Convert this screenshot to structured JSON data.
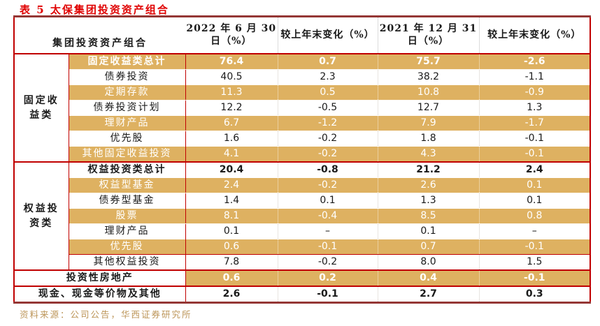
{
  "page": {
    "title": "表 5 太保集团投资资产组合",
    "source_note": "资料来源：公司公告，华西证券研究所"
  },
  "colors": {
    "title_red": "#e00000",
    "border_red": "#c00000",
    "border_dark_maroon": "#953735",
    "row_gold": "#deb161",
    "source_note_gold": "#bd965a",
    "gold_row_text": "#ffffff"
  },
  "table": {
    "header": {
      "label_col": "集团投资资产组合",
      "value_cols": [
        "2022 年 6 月 30 日（%）",
        "较上年末变化（%）",
        "2021 年 12 月 31 日（%）",
        "较上年末变化（%）"
      ]
    },
    "rows": [
      {
        "group": "固定收益类",
        "group_rows": 7,
        "label": "固定收益类总计",
        "shade": "gold",
        "bold": true,
        "values": [
          "76.4",
          "0.7",
          "75.7",
          "-2.6"
        ]
      },
      {
        "label": "债券投资",
        "shade": "white",
        "values": [
          "40.5",
          "2.3",
          "38.2",
          "-1.1"
        ]
      },
      {
        "label": "定期存款",
        "shade": "gold",
        "values": [
          "11.3",
          "0.5",
          "10.8",
          "-0.9"
        ]
      },
      {
        "label": "债券投资计划",
        "shade": "white",
        "values": [
          "12.2",
          "-0.5",
          "12.7",
          "1.3"
        ]
      },
      {
        "label": "理财产品",
        "shade": "gold",
        "values": [
          "6.7",
          "-1.2",
          "7.9",
          "-1.7"
        ]
      },
      {
        "label": "优先股",
        "shade": "white",
        "values": [
          "1.6",
          "-0.2",
          "1.8",
          "-0.1"
        ]
      },
      {
        "label": "其他固定收益投资",
        "shade": "gold",
        "values": [
          "4.1",
          "-0.2",
          "4.3",
          "-0.1"
        ]
      },
      {
        "group": "权益投资类",
        "group_rows": 7,
        "label": "权益投资类总计",
        "shade": "white",
        "bold": true,
        "section_start": true,
        "values": [
          "20.4",
          "-0.8",
          "21.2",
          "2.4"
        ]
      },
      {
        "label": "权益型基金",
        "shade": "gold",
        "values": [
          "2.4",
          "-0.2",
          "2.6",
          "0.1"
        ]
      },
      {
        "label": "债券型基金",
        "shade": "white",
        "values": [
          "1.4",
          "0.1",
          "1.3",
          "0.1"
        ]
      },
      {
        "label": "股票",
        "shade": "gold",
        "values": [
          "8.1",
          "-0.4",
          "8.5",
          "0.8"
        ]
      },
      {
        "label": "理财产品",
        "shade": "white",
        "values": [
          "0.1",
          "–",
          "0.1",
          "–"
        ]
      },
      {
        "label": "优先股",
        "shade": "gold",
        "box_end": true,
        "values": [
          "0.6",
          "-0.1",
          "0.7",
          "-0.1"
        ]
      },
      {
        "label": "其他权益投资",
        "shade": "white",
        "values": [
          "7.8",
          "-0.2",
          "8.0",
          "1.5"
        ]
      },
      {
        "label": "投资性房地产",
        "shade": "white",
        "bold": true,
        "span2": true,
        "values_gold": true,
        "section_start": true,
        "values": [
          "0.6",
          "0.2",
          "0.4",
          "-0.1"
        ]
      },
      {
        "label": "现金、现金等价物及其他",
        "shade": "white",
        "bold": true,
        "span2": true,
        "section_start": true,
        "values": [
          "2.6",
          "-0.1",
          "2.7",
          "0.3"
        ]
      }
    ]
  }
}
